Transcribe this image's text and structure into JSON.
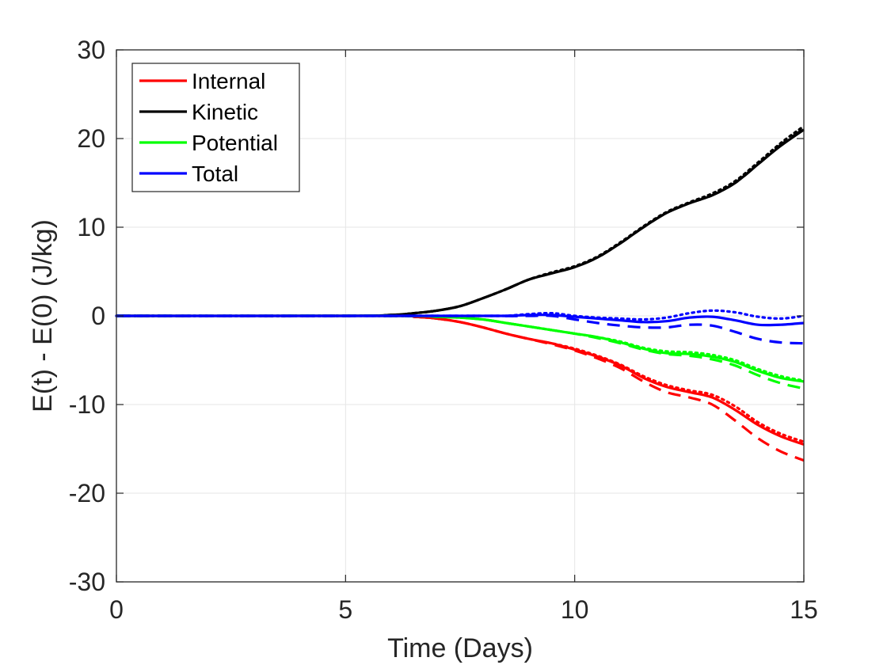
{
  "chart_data": {
    "type": "line",
    "title": "",
    "xlabel": "Time (Days)",
    "ylabel": "E(t) - E(0) (J/kg)",
    "xlim": [
      0,
      15
    ],
    "ylim": [
      -30,
      30
    ],
    "xticks": [
      0,
      5,
      10,
      15
    ],
    "yticks": [
      -30,
      -20,
      -10,
      0,
      10,
      20,
      30
    ],
    "xtick_labels": [
      "0",
      "5",
      "10",
      "15"
    ],
    "ytick_labels": [
      "-30",
      "-20",
      "-10",
      "0",
      "10",
      "20",
      "30"
    ],
    "grid": true,
    "legend_position": "top-left",
    "legend": [
      {
        "name": "Internal",
        "color": "#ff0000"
      },
      {
        "name": "Kinetic",
        "color": "#000000"
      },
      {
        "name": "Potential",
        "color": "#00ff00"
      },
      {
        "name": "Total",
        "color": "#0000ff"
      }
    ],
    "series": [
      {
        "name": "Internal",
        "style": "solid",
        "color": "#ff0000",
        "x": [
          0,
          6,
          6.5,
          7,
          7.5,
          8,
          8.5,
          9,
          9.5,
          10,
          10.5,
          11,
          11.5,
          12,
          12.5,
          13,
          13.5,
          14,
          14.5,
          15
        ],
        "y": [
          0,
          0,
          -0.1,
          -0.3,
          -0.7,
          -1.3,
          -2.0,
          -2.6,
          -3.1,
          -3.8,
          -4.6,
          -5.6,
          -7.0,
          -8.0,
          -8.6,
          -9.2,
          -10.6,
          -12.3,
          -13.6,
          -14.5
        ]
      },
      {
        "name": "Internal",
        "style": "dotted",
        "color": "#ff0000",
        "x": [
          0,
          6,
          6.5,
          7,
          7.5,
          8,
          8.5,
          9,
          9.5,
          10,
          10.5,
          11,
          11.5,
          12,
          12.5,
          13,
          13.5,
          14,
          14.5,
          15
        ],
        "y": [
          0,
          0,
          -0.1,
          -0.3,
          -0.7,
          -1.3,
          -2.0,
          -2.6,
          -3.1,
          -3.7,
          -4.5,
          -5.5,
          -6.8,
          -7.8,
          -8.4,
          -8.9,
          -10.2,
          -12.0,
          -13.3,
          -14.2
        ]
      },
      {
        "name": "Internal",
        "style": "dashed",
        "color": "#ff0000",
        "x": [
          0,
          6,
          6.5,
          7,
          7.5,
          8,
          8.5,
          9,
          9.5,
          10,
          10.5,
          11,
          11.5,
          12,
          12.5,
          13,
          13.5,
          14,
          14.5,
          15
        ],
        "y": [
          0,
          0,
          -0.1,
          -0.3,
          -0.7,
          -1.3,
          -2.0,
          -2.6,
          -3.2,
          -3.9,
          -4.8,
          -5.9,
          -7.4,
          -8.6,
          -9.2,
          -10.0,
          -11.8,
          -13.8,
          -15.3,
          -16.3
        ]
      },
      {
        "name": "Kinetic",
        "style": "solid",
        "color": "#000000",
        "x": [
          0,
          5,
          6,
          6.5,
          7,
          7.5,
          8,
          8.5,
          9,
          9.5,
          10,
          10.5,
          11,
          11.5,
          12,
          12.5,
          13,
          13.5,
          14,
          14.5,
          15
        ],
        "y": [
          0,
          0,
          0.1,
          0.3,
          0.6,
          1.1,
          2.0,
          3.0,
          4.1,
          4.8,
          5.5,
          6.6,
          8.2,
          10.0,
          11.6,
          12.7,
          13.6,
          15.0,
          17.1,
          19.2,
          21.0
        ]
      },
      {
        "name": "Kinetic",
        "style": "dotted",
        "color": "#000000",
        "x": [
          0,
          5,
          6,
          6.5,
          7,
          7.5,
          8,
          8.5,
          9,
          9.5,
          10,
          10.5,
          11,
          11.5,
          12,
          12.5,
          13,
          13.5,
          14,
          14.5,
          15
        ],
        "y": [
          0,
          0,
          0.1,
          0.3,
          0.6,
          1.1,
          2.0,
          3.0,
          4.1,
          4.9,
          5.6,
          6.7,
          8.3,
          10.1,
          11.7,
          12.8,
          13.8,
          15.2,
          17.3,
          19.5,
          21.4
        ]
      },
      {
        "name": "Kinetic",
        "style": "dashed",
        "color": "#000000",
        "x": [
          0,
          5,
          6,
          6.5,
          7,
          7.5,
          8,
          8.5,
          9,
          9.5,
          10,
          10.5,
          11,
          11.5,
          12,
          12.5,
          13,
          13.5,
          14,
          14.5,
          15
        ],
        "y": [
          0,
          0,
          0.1,
          0.3,
          0.6,
          1.1,
          2.0,
          3.0,
          4.1,
          4.8,
          5.5,
          6.6,
          8.2,
          10.0,
          11.6,
          12.7,
          13.6,
          15.0,
          17.1,
          19.3,
          21.1
        ]
      },
      {
        "name": "Potential",
        "style": "solid",
        "color": "#00ff00",
        "x": [
          0,
          6,
          7,
          7.5,
          8,
          8.5,
          9,
          9.5,
          10,
          10.5,
          11,
          11.5,
          12,
          12.5,
          13,
          13.5,
          14,
          14.5,
          15
        ],
        "y": [
          0,
          0,
          -0.1,
          -0.2,
          -0.4,
          -0.8,
          -1.2,
          -1.6,
          -2.0,
          -2.4,
          -3.0,
          -3.7,
          -4.2,
          -4.3,
          -4.6,
          -5.2,
          -6.2,
          -7.0,
          -7.4
        ]
      },
      {
        "name": "Potential",
        "style": "dotted",
        "color": "#00ff00",
        "x": [
          0,
          6,
          7,
          7.5,
          8,
          8.5,
          9,
          9.5,
          10,
          10.5,
          11,
          11.5,
          12,
          12.5,
          13,
          13.5,
          14,
          14.5,
          15
        ],
        "y": [
          0,
          0,
          -0.1,
          -0.2,
          -0.4,
          -0.8,
          -1.2,
          -1.6,
          -2.0,
          -2.4,
          -2.9,
          -3.6,
          -4.0,
          -4.1,
          -4.4,
          -5.0,
          -6.0,
          -6.8,
          -7.3
        ]
      },
      {
        "name": "Potential",
        "style": "dashed",
        "color": "#00ff00",
        "x": [
          0,
          6,
          7,
          7.5,
          8,
          8.5,
          9,
          9.5,
          10,
          10.5,
          11,
          11.5,
          12,
          12.5,
          13,
          13.5,
          14,
          14.5,
          15
        ],
        "y": [
          0,
          0,
          -0.1,
          -0.2,
          -0.4,
          -0.8,
          -1.2,
          -1.6,
          -2.0,
          -2.5,
          -3.1,
          -3.8,
          -4.3,
          -4.5,
          -4.9,
          -5.6,
          -6.7,
          -7.6,
          -8.2
        ]
      },
      {
        "name": "Total",
        "style": "solid",
        "color": "#0000ff",
        "x": [
          0,
          8,
          8.5,
          9,
          9.5,
          10,
          10.5,
          11,
          11.5,
          12,
          12.5,
          13,
          13.5,
          14,
          14.5,
          15
        ],
        "y": [
          0,
          0,
          0,
          0.1,
          0.1,
          -0.1,
          -0.3,
          -0.5,
          -0.7,
          -0.6,
          -0.2,
          -0.1,
          -0.5,
          -1.0,
          -1.0,
          -0.8
        ]
      },
      {
        "name": "Total",
        "style": "dotted",
        "color": "#0000ff",
        "x": [
          0,
          8,
          8.5,
          9,
          9.5,
          10,
          10.5,
          11,
          11.5,
          12,
          12.5,
          13,
          13.5,
          14,
          14.5,
          15
        ],
        "y": [
          0,
          0,
          0,
          0.2,
          0.3,
          0,
          -0.2,
          -0.3,
          -0.4,
          -0.2,
          0.3,
          0.6,
          0.4,
          -0.1,
          -0.3,
          0
        ]
      },
      {
        "name": "Total",
        "style": "dashed",
        "color": "#0000ff",
        "x": [
          0,
          8,
          8.5,
          9,
          9.5,
          10,
          10.5,
          11,
          11.5,
          12,
          12.5,
          13,
          13.5,
          14,
          14.5,
          15
        ],
        "y": [
          0,
          0,
          0,
          0,
          0,
          -0.4,
          -0.8,
          -1.1,
          -1.3,
          -1.3,
          -1.0,
          -1.1,
          -1.8,
          -2.6,
          -3.0,
          -3.1
        ]
      }
    ]
  }
}
